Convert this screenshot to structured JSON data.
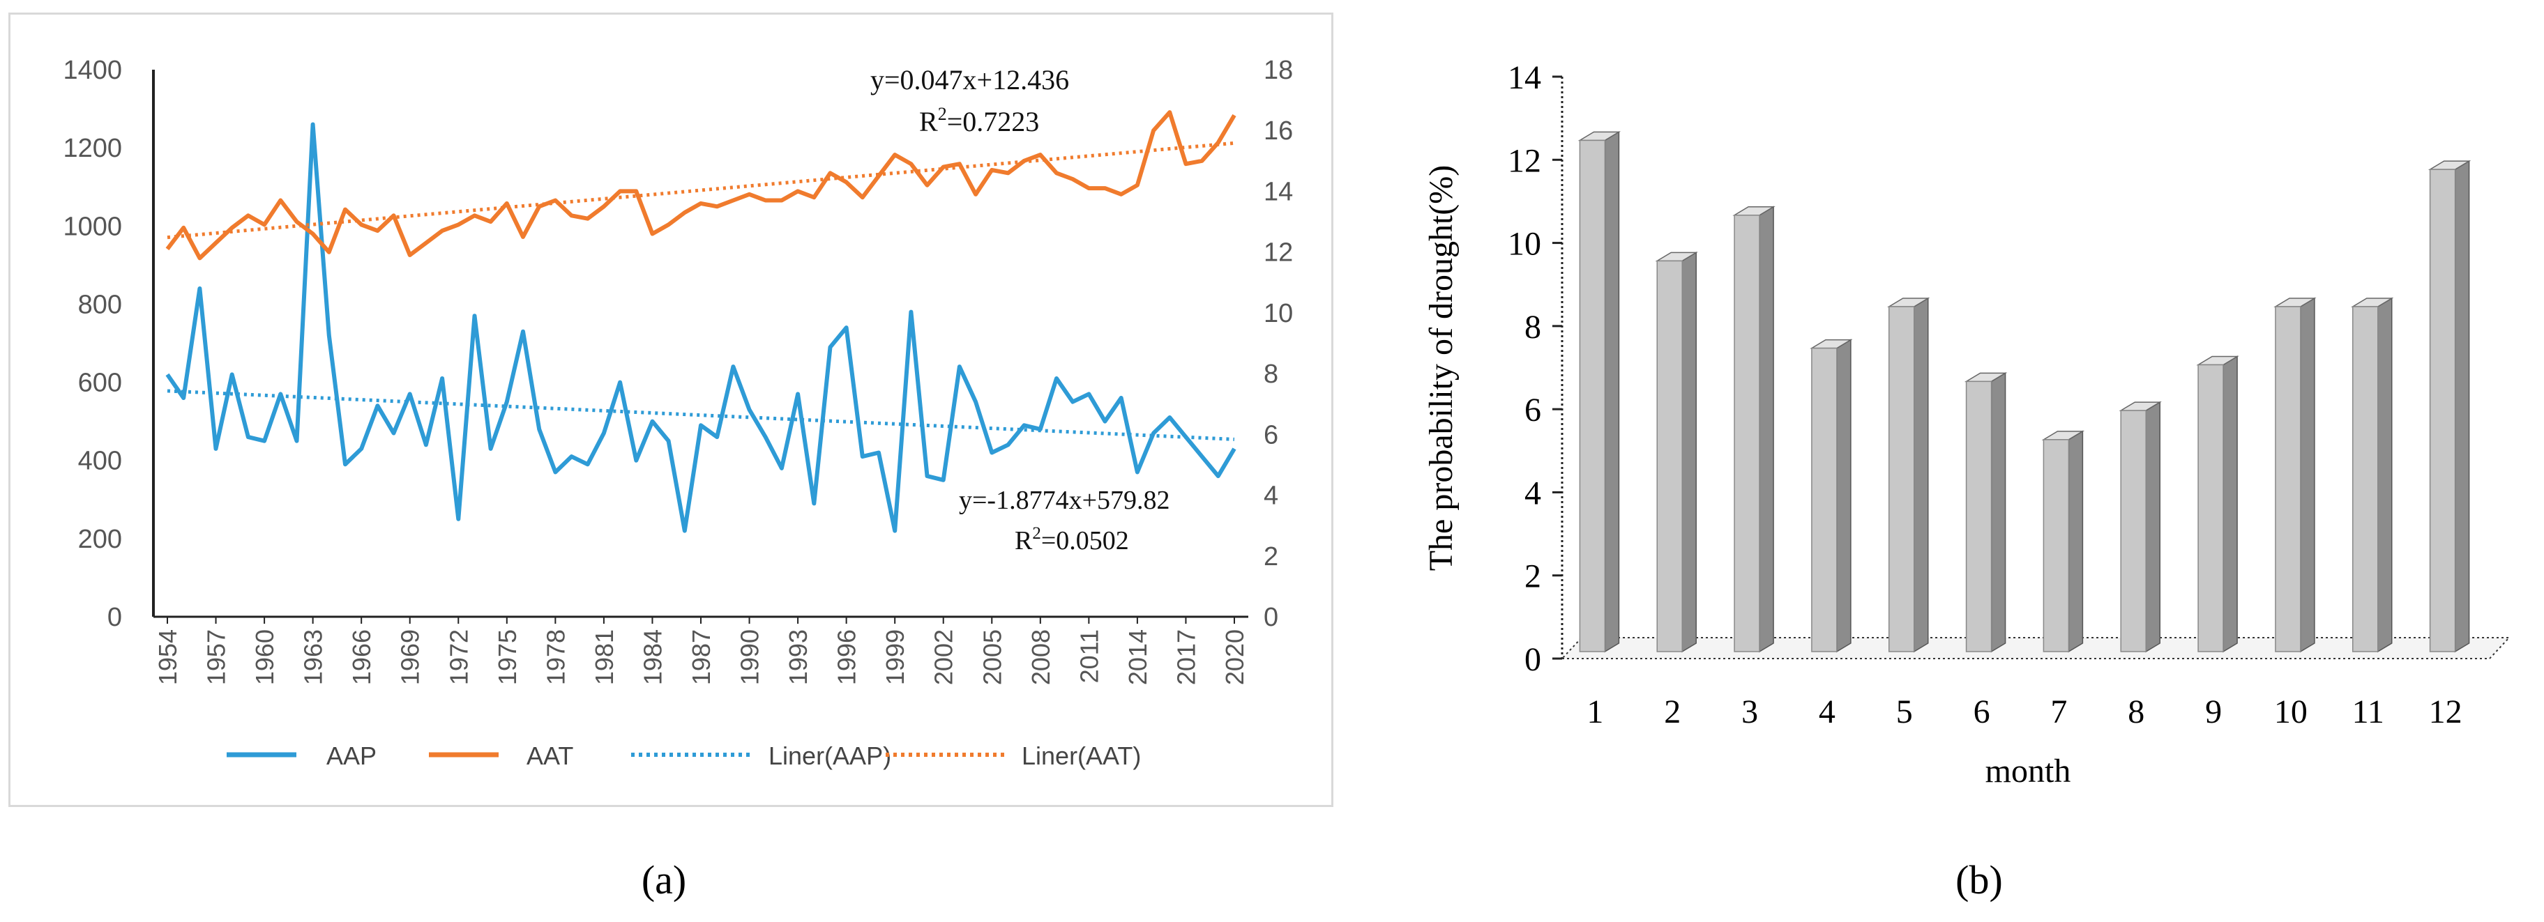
{
  "panel_a": {
    "caption": "(a)"
  },
  "panel_b": {
    "caption": "(b)"
  },
  "chart_data": [
    {
      "id": "a",
      "type": "line",
      "title": "",
      "x": [
        1954,
        1955,
        1956,
        1957,
        1958,
        1959,
        1960,
        1961,
        1962,
        1963,
        1964,
        1965,
        1966,
        1967,
        1968,
        1969,
        1970,
        1971,
        1972,
        1973,
        1974,
        1975,
        1976,
        1977,
        1978,
        1979,
        1980,
        1981,
        1982,
        1983,
        1984,
        1985,
        1986,
        1987,
        1988,
        1989,
        1990,
        1991,
        1992,
        1993,
        1994,
        1995,
        1996,
        1997,
        1998,
        1999,
        2000,
        2001,
        2002,
        2003,
        2004,
        2005,
        2006,
        2007,
        2008,
        2009,
        2010,
        2011,
        2012,
        2013,
        2014,
        2015,
        2016,
        2017,
        2018,
        2019,
        2020
      ],
      "xticks": [
        "1954",
        "1957",
        "1960",
        "1963",
        "1966",
        "1969",
        "1972",
        "1975",
        "1978",
        "1981",
        "1984",
        "1987",
        "1990",
        "1993",
        "1996",
        "1999",
        "2002",
        "2005",
        "2008",
        "2011",
        "2014",
        "2017",
        "2020"
      ],
      "ylim": [
        0,
        1400
      ],
      "yticks": [
        "0",
        "200",
        "400",
        "600",
        "800",
        "1000",
        "1200",
        "1400"
      ],
      "y2lim": [
        0,
        18
      ],
      "y2ticks": [
        "0",
        "2",
        "4",
        "6",
        "8",
        "10",
        "12",
        "14",
        "16",
        "18"
      ],
      "series": [
        {
          "name": "AAP",
          "axis": "left",
          "style": "solid",
          "color": "#2e9bd6",
          "values": [
            620,
            560,
            840,
            430,
            620,
            460,
            450,
            570,
            450,
            1260,
            720,
            390,
            430,
            540,
            470,
            570,
            440,
            610,
            250,
            770,
            430,
            550,
            730,
            480,
            370,
            410,
            390,
            470,
            600,
            400,
            500,
            450,
            220,
            490,
            460,
            640,
            530,
            460,
            380,
            570,
            290,
            690,
            740,
            410,
            420,
            220,
            780,
            360,
            350,
            640,
            550,
            420,
            440,
            490,
            480,
            610,
            550,
            570,
            500,
            560,
            370,
            470,
            510,
            460,
            410,
            360,
            430
          ]
        },
        {
          "name": "AAT",
          "axis": "right",
          "style": "solid",
          "color": "#f07b2d",
          "values": [
            12.1,
            12.8,
            11.8,
            12.3,
            12.8,
            13.2,
            12.9,
            13.7,
            13.0,
            12.6,
            12.0,
            13.4,
            12.9,
            12.7,
            13.2,
            11.9,
            12.3,
            12.7,
            12.9,
            13.2,
            13.0,
            13.6,
            12.5,
            13.5,
            13.7,
            13.2,
            13.1,
            13.5,
            14.0,
            14.0,
            12.6,
            12.9,
            13.3,
            13.6,
            13.5,
            13.7,
            13.9,
            13.7,
            13.7,
            14.0,
            13.8,
            14.6,
            14.3,
            13.8,
            14.5,
            15.2,
            14.9,
            14.2,
            14.8,
            14.9,
            13.9,
            14.7,
            14.6,
            15.0,
            15.2,
            14.6,
            14.4,
            14.1,
            14.1,
            13.9,
            14.2,
            16.0,
            16.6,
            14.9,
            15.0,
            15.6,
            16.5
          ]
        },
        {
          "name": "Liner(AAP)",
          "axis": "left",
          "style": "dotted",
          "color": "#2e9bd6",
          "slope": -1.8774,
          "intercept": 579.82
        },
        {
          "name": "Liner(AAT)",
          "axis": "right",
          "style": "dotted",
          "color": "#f07b2d",
          "slope": 0.047,
          "intercept": 12.436
        }
      ],
      "annotations": {
        "aat_equation": "y=0.047x+12.436",
        "aat_r2_label": "R",
        "aat_r2_sup": "2",
        "aat_r2_value": "=0.7223",
        "aap_equation": "y=-1.8774x+579.82",
        "aap_r2_label": "R",
        "aap_r2_sup": "2",
        "aap_r2_value": "=0.0502"
      },
      "legend": [
        "AAP",
        "AAT",
        "Liner(AAP)",
        "Liner(AAT)"
      ],
      "legend_position": "bottom",
      "grid": false
    },
    {
      "id": "b",
      "type": "bar",
      "title": "",
      "categories": [
        "1",
        "2",
        "3",
        "4",
        "5",
        "6",
        "7",
        "8",
        "9",
        "10",
        "11",
        "12"
      ],
      "values": [
        12.3,
        9.4,
        10.5,
        7.3,
        8.3,
        6.5,
        5.1,
        5.8,
        6.9,
        8.3,
        8.3,
        11.6
      ],
      "xlabel": "month",
      "ylabel": "The probability of drought(%)",
      "ylim": [
        0,
        14
      ],
      "yticks": [
        "0",
        "2",
        "4",
        "6",
        "8",
        "10",
        "12",
        "14"
      ],
      "colors": {
        "front": "#c8c8c8",
        "side": "#8c8c8c",
        "top": "#e2e2e2"
      },
      "grid": false
    }
  ]
}
